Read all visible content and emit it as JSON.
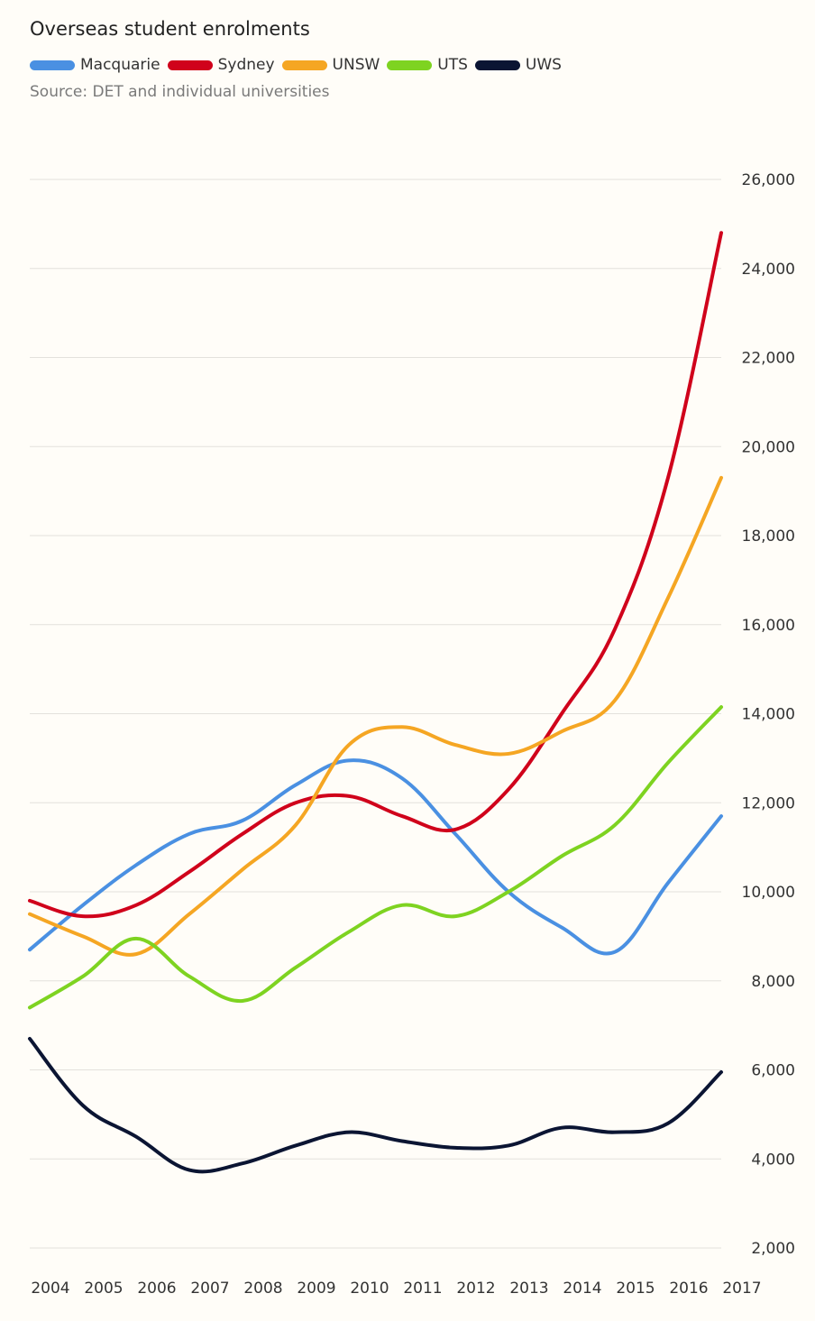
{
  "chart_data": {
    "type": "line",
    "title": "Overseas student enrolments",
    "subtitle": "Source: DET and individual universities",
    "xlabel": "",
    "ylabel": "",
    "x": [
      "2004",
      "2005",
      "2006",
      "2007",
      "2008",
      "2009",
      "2010",
      "2011",
      "2012",
      "2013",
      "2014",
      "2015",
      "2016",
      "2017"
    ],
    "ylim": [
      2000,
      26000
    ],
    "yticks": [
      2000,
      4000,
      6000,
      8000,
      10000,
      12000,
      14000,
      16000,
      18000,
      20000,
      22000,
      24000,
      26000
    ],
    "ytick_labels": [
      "2,000",
      "4,000",
      "6,000",
      "8,000",
      "10,000",
      "12,000",
      "14,000",
      "16,000",
      "18,000",
      "20,000",
      "22,000",
      "24,000",
      "26,000"
    ],
    "grid": true,
    "legend_position": "top-left",
    "series": [
      {
        "name": "Macquarie",
        "color": "#4a90e2",
        "values": [
          8700,
          9700,
          10600,
          11300,
          11600,
          12400,
          12950,
          12550,
          11300,
          10000,
          9200,
          8650,
          10200,
          11700
        ]
      },
      {
        "name": "Sydney",
        "color": "#d0021b",
        "values": [
          9800,
          9450,
          9700,
          10450,
          11300,
          12000,
          12150,
          11700,
          11400,
          12300,
          14000,
          15900,
          19300,
          24800
        ]
      },
      {
        "name": "UNSW",
        "color": "#f5a623",
        "values": [
          9500,
          9000,
          8600,
          9500,
          10500,
          11500,
          13300,
          13700,
          13300,
          13100,
          13600,
          14300,
          16600,
          19300
        ]
      },
      {
        "name": "UTS",
        "color": "#7ed321",
        "values": [
          7400,
          8100,
          8950,
          8100,
          7550,
          8300,
          9100,
          9700,
          9450,
          10000,
          10800,
          11500,
          12900,
          14150
        ]
      },
      {
        "name": "UWS",
        "color": "#0b1533",
        "values": [
          6700,
          5200,
          4500,
          3750,
          3900,
          4300,
          4600,
          4400,
          4250,
          4300,
          4700,
          4600,
          4800,
          5950
        ]
      }
    ]
  }
}
